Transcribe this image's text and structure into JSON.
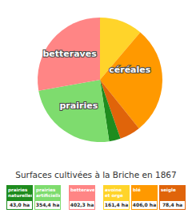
{
  "chart_data": {
    "type": "pie",
    "title": "Surfaces cultivées à la Briche en 1867",
    "categories": [
      "avoine et orge",
      "blé",
      "seigle",
      "prairies naturelles",
      "prairies artificielles",
      "betteraves"
    ],
    "values": [
      161.4,
      406.0,
      78.4,
      43.0,
      354.4,
      402.3
    ],
    "value_labels": [
      "161,4 ha",
      "406,0 ha",
      "78,4 ha",
      "43,0 ha",
      "354,4 ha",
      "402,3 ha"
    ],
    "colors": [
      "#ffd42a",
      "#ff9900",
      "#e0640a",
      "#1e8c1e",
      "#7edc6e",
      "#ff8585"
    ],
    "groups": [
      {
        "name": "prairies",
        "categories": [
          "prairies naturelles",
          "prairies artificielles"
        ]
      },
      {
        "name": "betteraves",
        "categories": [
          "betteraves"
        ]
      },
      {
        "name": "céréales",
        "categories": [
          "avoine et orge",
          "blé",
          "seigle"
        ]
      }
    ]
  }
}
